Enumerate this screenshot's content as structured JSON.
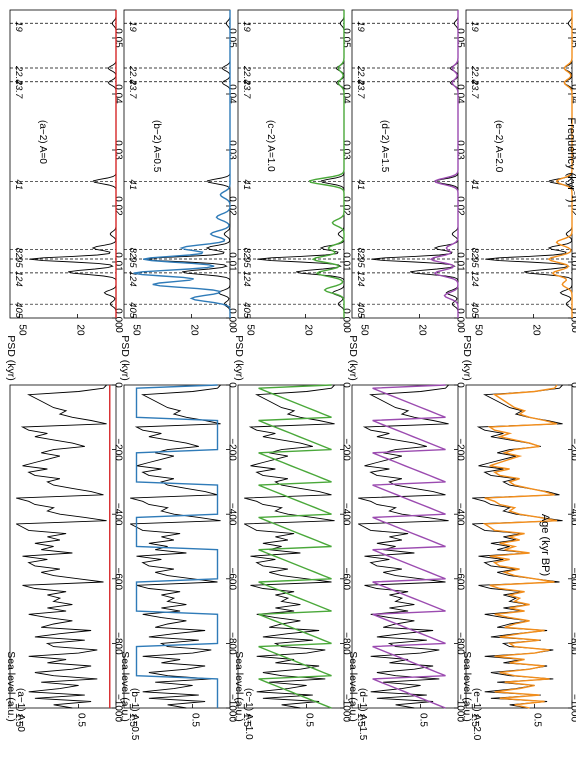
{
  "figure": {
    "left_xlabel": "Age (kyr BP)",
    "right_xlabel": "Frequency (kyr",
    "right_xlabel_sup": "−1",
    "right_xlabel_end": ")"
  },
  "colors": {
    "axis": "#000000",
    "observed": "#000000",
    "a": "#d62728",
    "b": "#2f7bb8",
    "c": "#4aa83a",
    "d": "#9b4bb0",
    "e": "#f28e1c"
  },
  "chart_data": [
    {
      "type": "line",
      "id": "time-panels",
      "xlabel": "Age (kyr BP)",
      "ylabel": "Sea level (a.u.)",
      "xlim": [
        -1000,
        0
      ],
      "ylim": [
        -0.1,
        1.6
      ],
      "xticks": [
        -1000,
        -800,
        -600,
        -400,
        -200,
        0
      ],
      "xtick_labels": [
        "−1000",
        "−800",
        "−600",
        "−400",
        "−200",
        "0"
      ],
      "yticks": [
        0.5,
        1.5
      ],
      "ytick_labels": [
        "0.5",
        "1.5"
      ],
      "panels": [
        {
          "key": "a",
          "label": "(a−1) A=0",
          "ylabel": "Sea level (a.u.)",
          "model_shape": "flat"
        },
        {
          "key": "b",
          "label": "(b−1) A=0.5",
          "ylabel": "Sea level (a.u.)",
          "model_shape": "square"
        },
        {
          "key": "c",
          "label": "(c−1) A=1.0",
          "ylabel": "Sea level (a.u.)",
          "model_shape": "saw"
        },
        {
          "key": "d",
          "label": "(d−1) A=1.5",
          "ylabel": "Sea level (a.u.)",
          "model_shape": "saw"
        },
        {
          "key": "e",
          "label": "(e−1) A=2.0",
          "ylabel": "Sea level (a.u.)",
          "model_shape": "wiggle"
        }
      ],
      "observed_series": {
        "x": [
          -1000,
          -990,
          -980,
          -970,
          -960,
          -950,
          -940,
          -930,
          -920,
          -910,
          -900,
          -890,
          -880,
          -870,
          -860,
          -850,
          -840,
          -830,
          -820,
          -810,
          -800,
          -790,
          -780,
          -770,
          -760,
          -750,
          -740,
          -730,
          -720,
          -710,
          -700,
          -690,
          -680,
          -670,
          -660,
          -650,
          -640,
          -630,
          -620,
          -610,
          -600,
          -590,
          -580,
          -570,
          -560,
          -550,
          -540,
          -530,
          -520,
          -510,
          -500,
          -490,
          -480,
          -470,
          -460,
          -450,
          -440,
          -430,
          -420,
          -410,
          -400,
          -390,
          -380,
          -370,
          -360,
          -350,
          -340,
          -330,
          -320,
          -310,
          -300,
          -290,
          -280,
          -270,
          -260,
          -250,
          -240,
          -230,
          -220,
          -210,
          -200,
          -190,
          -180,
          -170,
          -160,
          -150,
          -140,
          -130,
          -120,
          -110,
          -100,
          -90,
          -80,
          -70,
          -60,
          -50,
          -40,
          -30,
          -20,
          -10,
          0
        ],
        "y": [
          0.6,
          0.9,
          0.3,
          1.2,
          0.4,
          1.3,
          0.8,
          0.5,
          1.1,
          0.2,
          0.9,
          1.2,
          0.6,
          0.3,
          1.0,
          0.7,
          1.3,
          0.5,
          0.2,
          0.9,
          1.0,
          0.4,
          1.2,
          0.8,
          0.3,
          1.1,
          0.9,
          0.6,
          1.0,
          1.3,
          0.7,
          1.0,
          0.6,
          0.9,
          0.8,
          1.0,
          0.7,
          1.2,
          1.4,
          0.1,
          0.5,
          0.9,
          1.1,
          0.8,
          1.2,
          1.3,
          1.0,
          1.4,
          0.6,
          1.1,
          0.9,
          1.2,
          0.8,
          1.0,
          0.7,
          1.3,
          1.4,
          1.5,
          0.05,
          0.4,
          0.8,
          1.0,
          0.9,
          1.2,
          1.3,
          1.5,
          0.1,
          0.3,
          0.6,
          0.9,
          1.0,
          0.8,
          1.2,
          1.3,
          1.0,
          1.4,
          1.2,
          1.0,
          0.8,
          1.1,
          0.9,
          0.4,
          0.6,
          0.9,
          1.2,
          1.0,
          1.3,
          1.4,
          0.05,
          0.3,
          0.6,
          0.8,
          0.7,
          0.9,
          1.0,
          1.1,
          1.2,
          1.3,
          0.5,
          0.1,
          0.05
        ]
      }
    },
    {
      "type": "line",
      "id": "spectra-panels",
      "xlabel": "Frequency (kyr−1)",
      "ylabel": "PSD (kyr)",
      "xlim": [
        0.0,
        0.055
      ],
      "ylim": [
        0,
        55
      ],
      "xticks": [
        0.0,
        0.01,
        0.02,
        0.03,
        0.04,
        0.05
      ],
      "xtick_labels": [
        "0.00",
        "0.01",
        "0.02",
        "0.03",
        "0.04",
        "0.05"
      ],
      "yticks": [
        0,
        20,
        50
      ],
      "ytick_labels": [
        "0",
        "20",
        "50"
      ],
      "period_markers": [
        {
          "period": "405",
          "freq": 0.00247
        },
        {
          "period": "124",
          "freq": 0.00806
        },
        {
          "period": "95",
          "freq": 0.01053
        },
        {
          "period": "82",
          "freq": 0.0122
        },
        {
          "period": "41",
          "freq": 0.02439
        },
        {
          "period": "23.7",
          "freq": 0.04219
        },
        {
          "period": "22.4",
          "freq": 0.04464
        },
        {
          "period": "19",
          "freq": 0.05263
        }
      ],
      "panels": [
        {
          "key": "a",
          "label": "(a−2) A=0",
          "ylabel": "PSD (kyr)",
          "model_peaks": []
        },
        {
          "key": "b",
          "label": "(b−2) A=0.5",
          "ylabel": "PSD (kyr)",
          "model_peaks": [
            [
              0.0035,
              20
            ],
            [
              0.006,
              40
            ],
            [
              0.008,
              50
            ],
            [
              0.0105,
              45
            ],
            [
              0.0125,
              25
            ],
            [
              0.015,
              10
            ],
            [
              0.018,
              7
            ],
            [
              0.022,
              5
            ]
          ]
        },
        {
          "key": "c",
          "label": "(c−2) A=1.0",
          "ylabel": "PSD (kyr)",
          "model_peaks": [
            [
              0.005,
              10
            ],
            [
              0.008,
              14
            ],
            [
              0.0105,
              16
            ],
            [
              0.0125,
              8
            ],
            [
              0.017,
              6
            ],
            [
              0.0244,
              18
            ],
            [
              0.042,
              3
            ],
            [
              0.0446,
              3
            ]
          ]
        },
        {
          "key": "d",
          "label": "(d−2) A=1.5",
          "ylabel": "PSD (kyr)",
          "model_peaks": [
            [
              0.004,
              7
            ],
            [
              0.008,
              12
            ],
            [
              0.0105,
              14
            ],
            [
              0.0125,
              6
            ],
            [
              0.0244,
              12
            ],
            [
              0.042,
              3
            ],
            [
              0.0446,
              3
            ]
          ]
        },
        {
          "key": "e",
          "label": "(e−2) A=2.0",
          "ylabel": "PSD (kyr)",
          "model_peaks": [
            [
              0.006,
              5
            ],
            [
              0.008,
              10
            ],
            [
              0.0105,
              12
            ],
            [
              0.0135,
              8
            ],
            [
              0.0244,
              8
            ],
            [
              0.042,
              4
            ],
            [
              0.0446,
              4
            ]
          ]
        }
      ],
      "observed_peaks": [
        [
          0.0025,
          3
        ],
        [
          0.0045,
          6
        ],
        [
          0.0082,
          25
        ],
        [
          0.0105,
          45
        ],
        [
          0.0125,
          12
        ],
        [
          0.015,
          3
        ],
        [
          0.0244,
          12
        ],
        [
          0.042,
          4
        ],
        [
          0.0446,
          4
        ],
        [
          0.0526,
          2
        ]
      ]
    }
  ]
}
